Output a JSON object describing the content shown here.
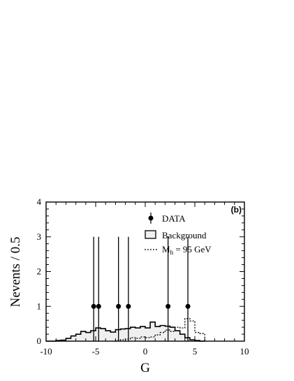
{
  "chart_data": {
    "type": "bar",
    "panel_label": "(b)",
    "xlabel": "G",
    "ylabel": "Nevents / 0.5",
    "xlim": [
      -10,
      10
    ],
    "ylim": [
      0,
      4
    ],
    "x_ticks": [
      -10,
      -5,
      0,
      5,
      10
    ],
    "y_ticks": [
      0,
      1,
      2,
      3,
      4
    ],
    "x_tick_labels": [
      "-10",
      "-5",
      "0",
      "5",
      "10"
    ],
    "y_tick_labels": [
      "0",
      "1",
      "2",
      "3",
      "4"
    ],
    "legend": {
      "position": "top-right",
      "data_label": "DATA",
      "background_label": "Background",
      "signal_label_main": "M",
      "signal_label_sub": "h",
      "signal_label_rest": " = 95 GeV"
    },
    "data_points": [
      {
        "x": -5.2,
        "y": 1
      },
      {
        "x": -4.7,
        "y": 1
      },
      {
        "x": -2.7,
        "y": 1
      },
      {
        "x": -1.7,
        "y": 1
      },
      {
        "x": 2.3,
        "y": 1
      },
      {
        "x": 4.3,
        "y": 1
      }
    ],
    "data_error_high": 2,
    "data_error_low": 1,
    "background_hist": {
      "bin_edges": [
        -10,
        -9.5,
        -9,
        -8.5,
        -8,
        -7.5,
        -7,
        -6.5,
        -6,
        -5.5,
        -5,
        -4.5,
        -4,
        -3.5,
        -3,
        -2.5,
        -2,
        -1.5,
        -1,
        -0.5,
        0,
        0.5,
        1,
        1.5,
        2,
        2.5,
        3,
        3.5,
        4,
        4.5,
        5,
        5.5,
        6
      ],
      "values": [
        0,
        0,
        0.02,
        0.03,
        0.08,
        0.15,
        0.2,
        0.28,
        0.25,
        0.3,
        0.38,
        0.36,
        0.3,
        0.26,
        0.33,
        0.35,
        0.36,
        0.4,
        0.38,
        0.42,
        0.38,
        0.55,
        0.42,
        0.45,
        0.43,
        0.4,
        0.3,
        0.2,
        0.1,
        0.04,
        0.02,
        0
      ]
    },
    "signal_hist": {
      "bin_edges": [
        -3,
        -2.5,
        -2,
        -1.5,
        -1,
        -0.5,
        0,
        0.5,
        1,
        1.5,
        2,
        2.5,
        3,
        3.5,
        4,
        4.5,
        5,
        5.5,
        6
      ],
      "values": [
        0.02,
        0.04,
        0.06,
        0.1,
        0.08,
        0.12,
        0.1,
        0.12,
        0.18,
        0.25,
        0.32,
        0.28,
        0.4,
        0.38,
        0.65,
        0.58,
        0.25,
        0.22
      ]
    }
  }
}
